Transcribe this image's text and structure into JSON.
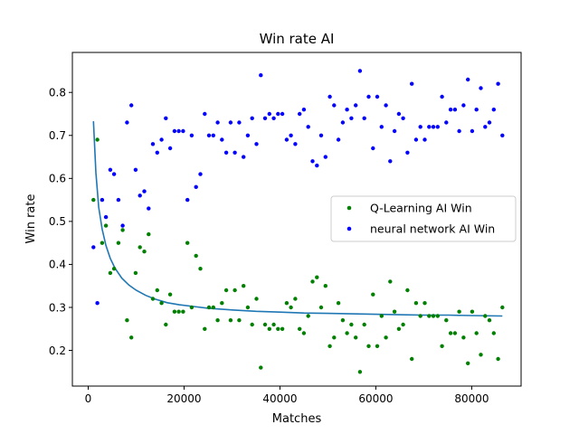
{
  "chart_data": {
    "type": "scatter",
    "title": "Win rate AI",
    "xlabel": "Matches",
    "ylabel": "Win rate",
    "xlim": [
      -3300,
      90300
    ],
    "ylim": [
      0.117,
      0.893
    ],
    "xticks": [
      0,
      20000,
      40000,
      60000,
      80000
    ],
    "xtick_labels": [
      "0",
      "20000",
      "40000",
      "60000",
      "80000"
    ],
    "yticks": [
      0.2,
      0.3,
      0.4,
      0.5,
      0.6,
      0.7,
      0.8
    ],
    "ytick_labels": [
      "0.2",
      "0.3",
      "0.4",
      "0.5",
      "0.6",
      "0.7",
      "0.8"
    ],
    "grid": false,
    "legend_position": "center-right",
    "legend": [
      "Q-Learning AI Win",
      "neural network AI Win"
    ],
    "series": [
      {
        "name": "Q-Learning AI Win",
        "color": "#008000",
        "marker": "point",
        "x": [
          1100,
          1900,
          2900,
          3700,
          4600,
          5400,
          6300,
          7200,
          8100,
          9000,
          9900,
          10800,
          11700,
          12600,
          13500,
          14400,
          15300,
          16200,
          17100,
          18000,
          18900,
          19800,
          20700,
          21600,
          22500,
          23400,
          24300,
          25200,
          26100,
          27000,
          27900,
          28800,
          29700,
          30600,
          31500,
          32400,
          33300,
          34200,
          35100,
          36000,
          36900,
          37800,
          38700,
          39600,
          40500,
          41400,
          42300,
          43200,
          44100,
          45000,
          45900,
          46800,
          47700,
          48600,
          49500,
          50400,
          51300,
          52200,
          53100,
          54000,
          54900,
          55800,
          56700,
          57600,
          58500,
          59400,
          60300,
          61200,
          62100,
          63000,
          63900,
          64800,
          65700,
          66600,
          67500,
          68400,
          69300,
          70200,
          71100,
          72000,
          72900,
          73800,
          74700,
          75600,
          76500,
          77400,
          78300,
          79200,
          80100,
          81000,
          81900,
          82800,
          83700,
          84600,
          85500,
          86400
        ],
        "y": [
          0.55,
          0.69,
          0.45,
          0.49,
          0.38,
          0.39,
          0.45,
          0.48,
          0.27,
          0.23,
          0.38,
          0.44,
          0.43,
          0.47,
          0.32,
          0.34,
          0.31,
          0.26,
          0.33,
          0.29,
          0.29,
          0.29,
          0.45,
          0.3,
          0.42,
          0.39,
          0.25,
          0.3,
          0.3,
          0.27,
          0.31,
          0.34,
          0.27,
          0.34,
          0.27,
          0.35,
          0.3,
          0.26,
          0.32,
          0.16,
          0.26,
          0.25,
          0.26,
          0.25,
          0.25,
          0.31,
          0.3,
          0.32,
          0.25,
          0.24,
          0.28,
          0.36,
          0.37,
          0.3,
          0.35,
          0.21,
          0.23,
          0.31,
          0.27,
          0.24,
          0.26,
          0.23,
          0.15,
          0.26,
          0.21,
          0.33,
          0.21,
          0.28,
          0.23,
          0.36,
          0.29,
          0.25,
          0.26,
          0.34,
          0.18,
          0.31,
          0.28,
          0.31,
          0.28,
          0.28,
          0.28,
          0.21,
          0.27,
          0.24,
          0.24,
          0.29,
          0.23,
          0.17,
          0.29,
          0.24,
          0.19,
          0.28,
          0.27,
          0.24,
          0.18,
          0.3
        ]
      },
      {
        "name": "neural network AI Win",
        "color": "#0000ff",
        "marker": "point",
        "x": [
          1100,
          1900,
          2900,
          3700,
          4600,
          5400,
          6300,
          7200,
          8100,
          9000,
          9900,
          10800,
          11700,
          12600,
          13500,
          14400,
          15300,
          16200,
          17100,
          18000,
          18900,
          19800,
          20700,
          21600,
          22500,
          23400,
          24300,
          25200,
          26100,
          27000,
          27900,
          28800,
          29700,
          30600,
          31500,
          32400,
          33300,
          34200,
          35100,
          36000,
          36900,
          37800,
          38700,
          39600,
          40500,
          41400,
          42300,
          43200,
          44100,
          45000,
          45900,
          46800,
          47700,
          48600,
          49500,
          50400,
          51300,
          52200,
          53100,
          54000,
          54900,
          55800,
          56700,
          57600,
          58500,
          59400,
          60300,
          61200,
          62100,
          63000,
          63900,
          64800,
          65700,
          66600,
          67500,
          68400,
          69300,
          70200,
          71100,
          72000,
          72900,
          73800,
          74700,
          75600,
          76500,
          77400,
          78300,
          79200,
          80100,
          81000,
          81900,
          82800,
          83700,
          84600,
          85500,
          86400
        ],
        "y": [
          0.44,
          0.31,
          0.55,
          0.51,
          0.62,
          0.61,
          0.55,
          0.49,
          0.73,
          0.77,
          0.62,
          0.56,
          0.57,
          0.53,
          0.68,
          0.66,
          0.69,
          0.74,
          0.67,
          0.71,
          0.71,
          0.71,
          0.55,
          0.7,
          0.58,
          0.61,
          0.75,
          0.7,
          0.7,
          0.73,
          0.69,
          0.66,
          0.73,
          0.66,
          0.73,
          0.65,
          0.7,
          0.74,
          0.68,
          0.84,
          0.74,
          0.75,
          0.74,
          0.75,
          0.75,
          0.69,
          0.7,
          0.68,
          0.75,
          0.76,
          0.72,
          0.64,
          0.63,
          0.7,
          0.65,
          0.79,
          0.77,
          0.69,
          0.73,
          0.76,
          0.74,
          0.77,
          0.85,
          0.74,
          0.79,
          0.67,
          0.79,
          0.72,
          0.77,
          0.64,
          0.71,
          0.75,
          0.74,
          0.66,
          0.82,
          0.69,
          0.72,
          0.69,
          0.72,
          0.72,
          0.72,
          0.79,
          0.73,
          0.76,
          0.76,
          0.71,
          0.77,
          0.83,
          0.71,
          0.76,
          0.81,
          0.72,
          0.73,
          0.76,
          0.82,
          0.7
        ]
      },
      {
        "name": "",
        "color": "#1f77b4",
        "marker": "line",
        "x": [
          1100,
          1600,
          2200,
          2900,
          3700,
          4600,
          5600,
          7000,
          8500,
          10000,
          12000,
          14000,
          16500,
          19000,
          22000,
          25000,
          30000,
          35000,
          40000,
          45000,
          50000,
          55000,
          60000,
          65000,
          70000,
          75000,
          80000,
          86400
        ],
        "y": [
          0.733,
          0.613,
          0.533,
          0.482,
          0.444,
          0.414,
          0.391,
          0.368,
          0.352,
          0.34,
          0.328,
          0.319,
          0.311,
          0.306,
          0.302,
          0.298,
          0.294,
          0.291,
          0.289,
          0.287,
          0.286,
          0.285,
          0.284,
          0.283,
          0.282,
          0.282,
          0.281,
          0.28
        ]
      }
    ]
  }
}
